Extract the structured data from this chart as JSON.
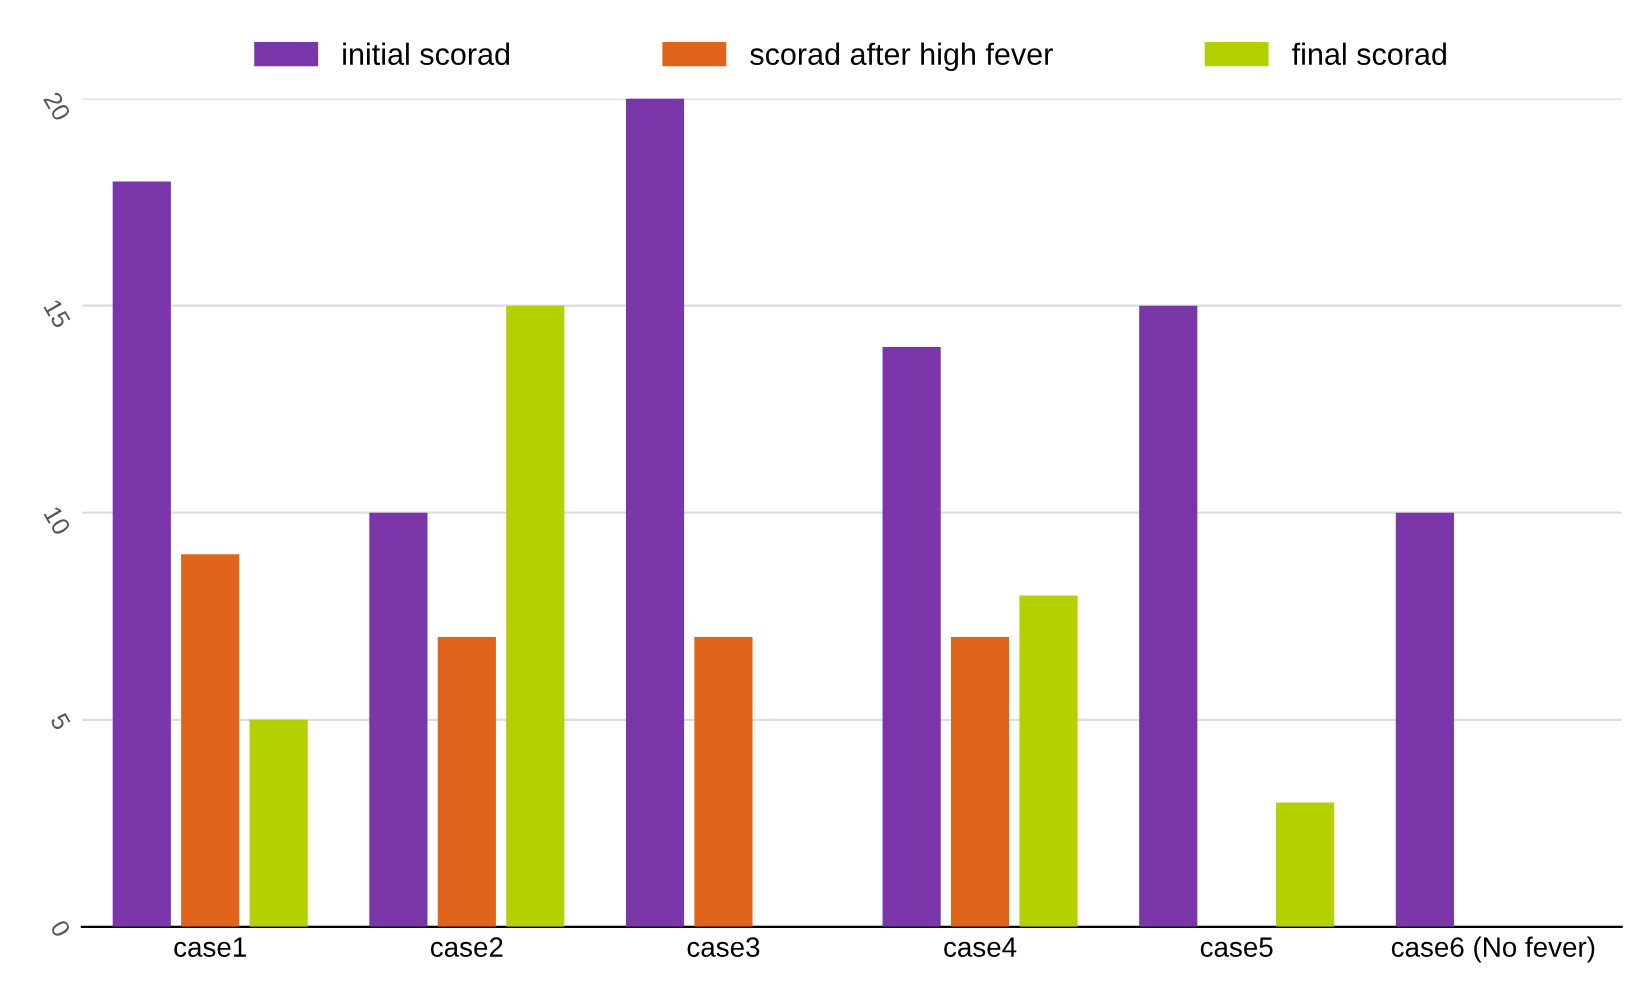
{
  "chart_data": {
    "type": "bar",
    "categories": [
      "case1",
      "case2",
      "case3",
      "case4",
      "case5",
      "case6 (No fever)"
    ],
    "series": [
      {
        "name": "initial scorad",
        "color": "#7a35a8",
        "values": [
          18,
          10,
          20,
          14,
          15,
          10
        ]
      },
      {
        "name": "scorad after high fever",
        "color": "#e0641a",
        "values": [
          9,
          7,
          7,
          7,
          null,
          null
        ]
      },
      {
        "name": "final scorad",
        "color": "#b5d000",
        "values": [
          5,
          15,
          null,
          8,
          3,
          null
        ]
      }
    ],
    "ylim": [
      0,
      20
    ],
    "yticks": [
      0,
      5,
      10,
      15,
      20
    ],
    "grid": "y",
    "legend": "top"
  }
}
